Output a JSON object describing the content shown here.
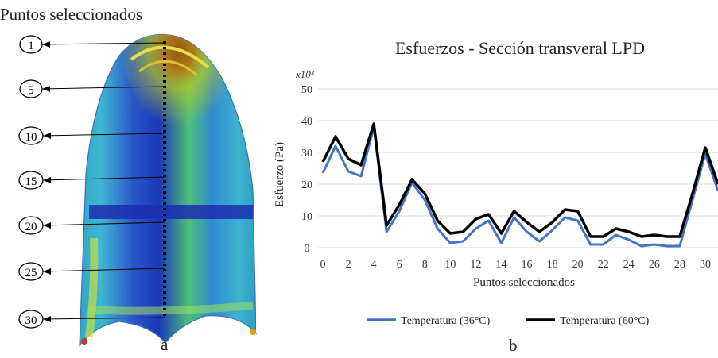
{
  "panel_a": {
    "heading": "Puntos seleccionados",
    "markers": [
      "1",
      "5",
      "10",
      "15",
      "20",
      "25",
      "30"
    ],
    "sublabel": "a"
  },
  "panel_b": {
    "sublabel": "b"
  },
  "chart_data": {
    "type": "line",
    "title": "Esfuerzos - Sección transveral LPD",
    "xlabel": "Puntos seleccionados",
    "ylabel": "Esfuerzo (Pa)",
    "y_multiplier": "x10³",
    "ylim": [
      0,
      50
    ],
    "yticks": [
      0,
      10,
      20,
      30,
      40,
      50
    ],
    "xticks": [
      0,
      2,
      4,
      6,
      8,
      10,
      12,
      14,
      16,
      18,
      20,
      22,
      24,
      26,
      28,
      30
    ],
    "grid": "horizontal",
    "legend_position": "bottom",
    "x": [
      0,
      1,
      2,
      3,
      4,
      5,
      6,
      7,
      8,
      9,
      10,
      11,
      12,
      13,
      14,
      15,
      16,
      17,
      18,
      19,
      20,
      21,
      22,
      23,
      24,
      25,
      26,
      27,
      28,
      29,
      30,
      31
    ],
    "series": [
      {
        "name": "Temperatura (36°C)",
        "color": "#4472c4",
        "values": [
          23.5,
          32,
          24,
          22.5,
          38,
          5,
          11.5,
          20.5,
          15,
          6,
          1.5,
          2,
          6,
          8.5,
          1.5,
          9.5,
          5,
          2,
          5.5,
          9.5,
          8.5,
          1,
          1,
          4,
          2.5,
          0.5,
          1,
          0.5,
          0.5,
          15,
          29.5,
          18
        ]
      },
      {
        "name": "Temperatura (60°C)",
        "color": "#000000",
        "values": [
          27,
          35,
          28,
          26,
          39,
          7,
          13.5,
          21.5,
          17,
          8.5,
          4.5,
          5,
          9,
          10.5,
          4.5,
          11.5,
          8,
          5,
          8,
          12,
          11.5,
          3.5,
          3.5,
          6,
          5,
          3.5,
          4,
          3.5,
          3.5,
          17,
          31.5,
          20
        ]
      }
    ]
  }
}
